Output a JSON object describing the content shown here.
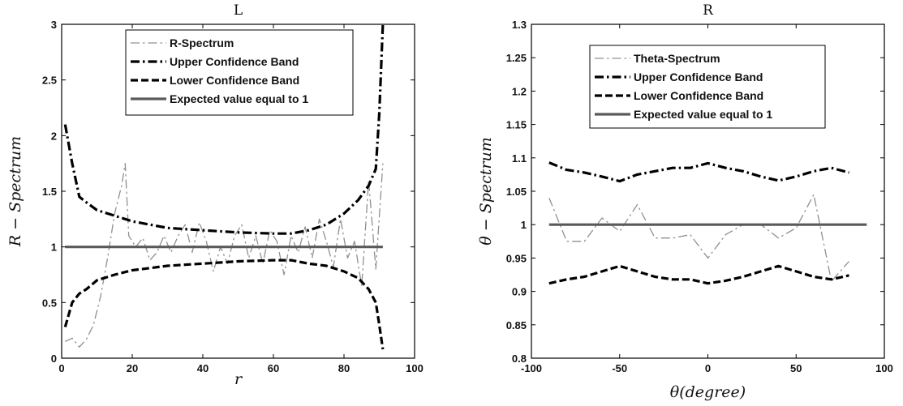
{
  "chart_data": [
    {
      "type": "line",
      "title": "L",
      "xlabel": "r",
      "ylabel": "R − Spectrum",
      "xlim": [
        0,
        100
      ],
      "ylim": [
        0,
        3
      ],
      "xticks": [
        "0",
        "20",
        "40",
        "60",
        "80",
        "100"
      ],
      "yticks": [
        "0",
        "0.5",
        "1",
        "1.5",
        "2",
        "2.5",
        "3"
      ],
      "grid": false,
      "legend_position": "top-center",
      "series": [
        {
          "name": "R-Spectrum",
          "style": "dash-dot",
          "color": "#909090",
          "width": 1.3,
          "x": [
            1,
            3,
            5,
            7,
            9,
            11,
            13,
            15,
            17,
            18,
            19,
            21,
            23,
            25,
            27,
            29,
            31,
            33,
            35,
            37,
            39,
            41,
            43,
            45,
            47,
            49,
            51,
            53,
            55,
            57,
            59,
            61,
            63,
            65,
            67,
            69,
            71,
            73,
            75,
            77,
            79,
            81,
            83,
            85,
            87,
            89,
            91
          ],
          "y": [
            0.15,
            0.18,
            0.1,
            0.17,
            0.3,
            0.55,
            0.9,
            1.3,
            1.55,
            1.75,
            1.1,
            1.0,
            1.08,
            0.88,
            0.95,
            1.1,
            0.95,
            1.1,
            1.2,
            0.95,
            1.22,
            1.05,
            0.78,
            1.0,
            0.85,
            1.1,
            1.2,
            0.9,
            1.1,
            0.85,
            1.15,
            1.05,
            0.75,
            1.1,
            0.95,
            1.18,
            0.9,
            1.25,
            1.05,
            0.82,
            1.25,
            0.9,
            1.05,
            0.65,
            1.6,
            0.8,
            1.75
          ]
        },
        {
          "name": "Upper Confidence Band",
          "style": "dash-dot",
          "color": "#000000",
          "width": 3.2,
          "x": [
            1,
            3,
            5,
            7,
            10,
            15,
            20,
            25,
            30,
            40,
            50,
            60,
            65,
            70,
            75,
            80,
            84,
            87,
            89,
            90,
            91
          ],
          "y": [
            2.1,
            1.75,
            1.45,
            1.4,
            1.33,
            1.28,
            1.23,
            1.2,
            1.17,
            1.15,
            1.13,
            1.12,
            1.12,
            1.15,
            1.2,
            1.3,
            1.42,
            1.55,
            1.7,
            2.2,
            3.0
          ]
        },
        {
          "name": "Lower Confidence Band",
          "style": "dashed",
          "color": "#000000",
          "width": 3.2,
          "x": [
            1,
            3,
            5,
            7,
            10,
            15,
            20,
            25,
            30,
            40,
            50,
            60,
            65,
            70,
            75,
            80,
            84,
            87,
            89,
            90,
            91
          ],
          "y": [
            0.28,
            0.5,
            0.58,
            0.62,
            0.7,
            0.75,
            0.79,
            0.81,
            0.83,
            0.85,
            0.87,
            0.88,
            0.88,
            0.85,
            0.83,
            0.78,
            0.72,
            0.62,
            0.5,
            0.3,
            0.08
          ]
        },
        {
          "name": "Expected value equal to 1",
          "style": "solid",
          "color": "#5a5a5a",
          "width": 3.2,
          "x": [
            1,
            91
          ],
          "y": [
            1,
            1
          ]
        }
      ]
    },
    {
      "type": "line",
      "title": "R",
      "xlabel": "θ(degree)",
      "ylabel": "θ − Spectrum",
      "xlim": [
        -100,
        100
      ],
      "ylim": [
        0.8,
        1.3
      ],
      "xticks": [
        "-100",
        "-50",
        "0",
        "50",
        "100"
      ],
      "yticks": [
        "0.8",
        "0.85",
        "0.9",
        "0.95",
        "1",
        "1.05",
        "1.1",
        "1.15",
        "1.2",
        "1.25",
        "1.3"
      ],
      "grid": false,
      "legend_position": "top-center",
      "series": [
        {
          "name": "Theta-Spectrum",
          "style": "dash-dot",
          "color": "#909090",
          "width": 1.3,
          "x": [
            -90,
            -80,
            -70,
            -60,
            -50,
            -40,
            -30,
            -20,
            -10,
            0,
            10,
            20,
            30,
            40,
            50,
            60,
            70,
            80
          ],
          "y": [
            1.04,
            0.975,
            0.975,
            1.01,
            0.99,
            1.03,
            0.98,
            0.98,
            0.985,
            0.95,
            0.985,
            1.0,
            1.0,
            0.98,
            0.995,
            1.045,
            0.915,
            0.945
          ]
        },
        {
          "name": "Upper Confidence Band",
          "style": "dash-dot",
          "color": "#000000",
          "width": 3.2,
          "x": [
            -90,
            -80,
            -70,
            -60,
            -50,
            -40,
            -30,
            -20,
            -10,
            0,
            10,
            20,
            30,
            40,
            50,
            60,
            70,
            80
          ],
          "y": [
            1.093,
            1.082,
            1.078,
            1.072,
            1.065,
            1.075,
            1.08,
            1.085,
            1.085,
            1.092,
            1.085,
            1.08,
            1.072,
            1.066,
            1.072,
            1.08,
            1.085,
            1.078
          ]
        },
        {
          "name": "Lower Confidence Band",
          "style": "dashed",
          "color": "#000000",
          "width": 3.2,
          "x": [
            -90,
            -80,
            -70,
            -60,
            -50,
            -40,
            -30,
            -20,
            -10,
            0,
            10,
            20,
            30,
            40,
            50,
            60,
            70,
            80
          ],
          "y": [
            0.912,
            0.918,
            0.922,
            0.93,
            0.938,
            0.93,
            0.922,
            0.918,
            0.918,
            0.912,
            0.916,
            0.922,
            0.93,
            0.938,
            0.93,
            0.922,
            0.918,
            0.924
          ]
        },
        {
          "name": "Expected value equal to 1",
          "style": "solid",
          "color": "#5a5a5a",
          "width": 3.2,
          "x": [
            -90,
            90
          ],
          "y": [
            1,
            1
          ]
        }
      ]
    }
  ]
}
